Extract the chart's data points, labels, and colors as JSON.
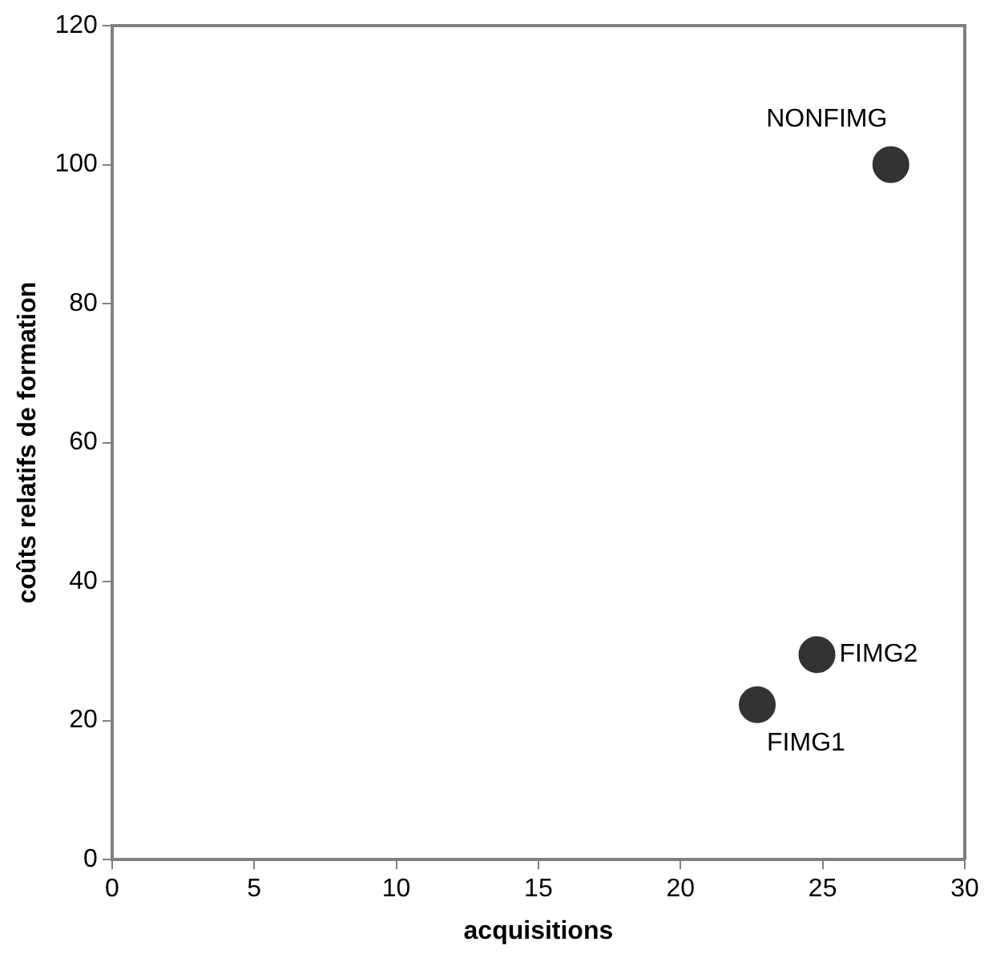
{
  "chart_data": {
    "type": "scatter",
    "xlabel": "acquisitions",
    "ylabel": "coûts relatifs de formation",
    "xlim": [
      0,
      30
    ],
    "xticks": [
      0,
      5,
      10,
      15,
      20,
      25,
      30
    ],
    "ylim": [
      0,
      120
    ],
    "yticks": [
      0,
      20,
      40,
      60,
      80,
      100,
      120
    ],
    "grid": false,
    "legend": false,
    "marker": "circle",
    "series": [
      {
        "name": "NONFIMG",
        "color": "#333333",
        "x": [
          27.4
        ],
        "values": [
          100
        ]
      },
      {
        "name": "FIMG2",
        "color": "#333333",
        "x": [
          24.8
        ],
        "values": [
          29.5
        ]
      },
      {
        "name": "FIMG1",
        "color": "#333333",
        "x": [
          22.7
        ],
        "values": [
          22.3
        ]
      }
    ]
  }
}
